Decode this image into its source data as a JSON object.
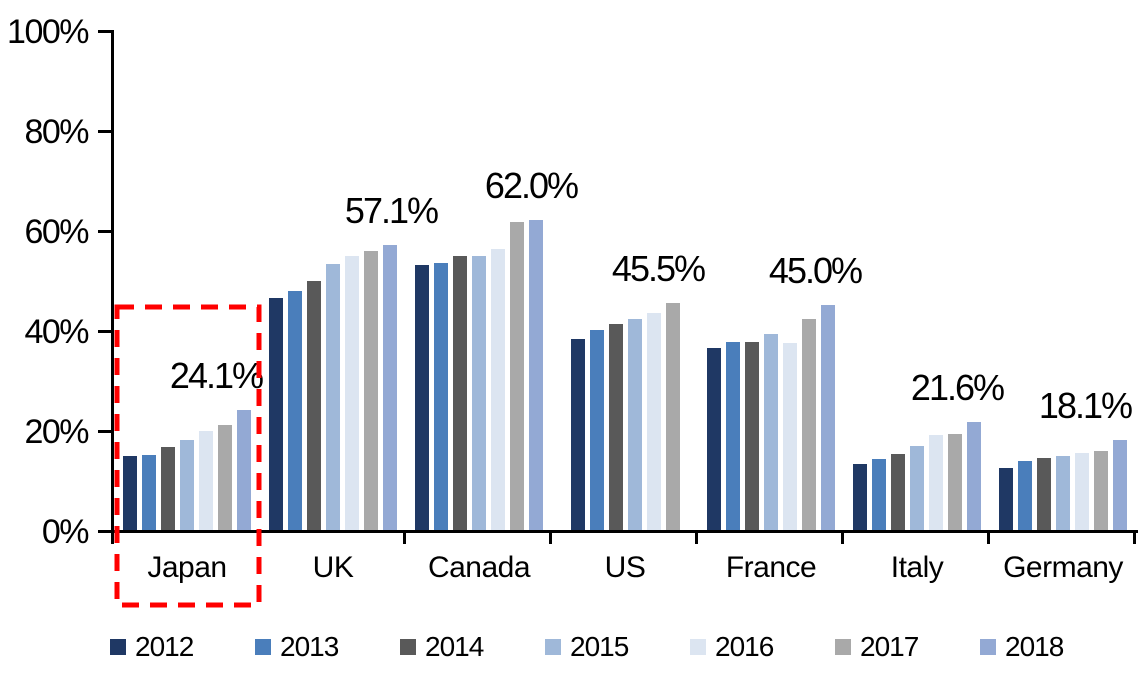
{
  "chart_data": {
    "type": "bar",
    "title": "",
    "xlabel": "",
    "ylabel": "",
    "categories": [
      "Japan",
      "UK",
      "Canada",
      "US",
      "France",
      "Italy",
      "Germany"
    ],
    "series": [
      {
        "name": "2012",
        "color": "#1F3864",
        "values": [
          14.9,
          46.4,
          53.0,
          38.2,
          36.5,
          13.3,
          12.4
        ]
      },
      {
        "name": "2013",
        "color": "#4A7EBB",
        "values": [
          15.1,
          47.8,
          53.4,
          40.0,
          37.7,
          14.2,
          13.9
        ]
      },
      {
        "name": "2014",
        "color": "#595959",
        "values": [
          16.7,
          49.9,
          54.9,
          41.2,
          37.6,
          15.3,
          14.4
        ]
      },
      {
        "name": "2015",
        "color": "#9FB8D9",
        "values": [
          18.1,
          53.3,
          54.8,
          42.2,
          39.3,
          16.9,
          14.8
        ]
      },
      {
        "name": "2016",
        "color": "#DCE5F1",
        "values": [
          19.9,
          54.8,
          56.2,
          43.5,
          37.4,
          19.0,
          15.5
        ]
      },
      {
        "name": "2017",
        "color": "#A9A9A9",
        "values": [
          21.1,
          55.8,
          61.7,
          45.5,
          42.3,
          19.2,
          15.9
        ]
      },
      {
        "name": "2018",
        "color": "#93A9D4",
        "values": [
          24.1,
          57.1,
          62.0,
          null,
          45.0,
          21.6,
          18.1
        ]
      }
    ],
    "data_labels": [
      "24.1%",
      "57.1%",
      "62.0%",
      "45.5%",
      "45.0%",
      "21.6%",
      "18.1%"
    ],
    "y_ticks": [
      "100%",
      "80%",
      "60%",
      "40%",
      "20%",
      "0%"
    ],
    "ylim": [
      0,
      100
    ],
    "grid": false,
    "legend_position": "bottom",
    "annotation": {
      "type": "dashed-red-rectangle",
      "color": "#FF0000",
      "highlighted_category": "Japan"
    }
  }
}
